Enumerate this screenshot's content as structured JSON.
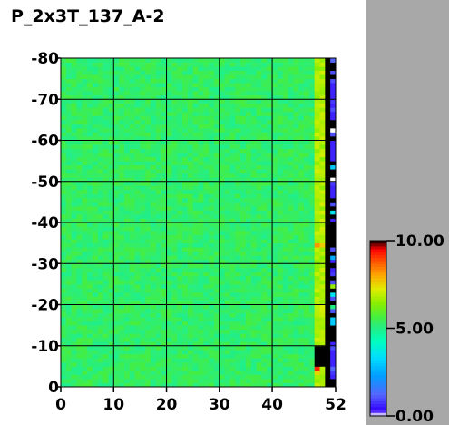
{
  "chart_data": {
    "type": "heatmap",
    "title": "P_2x3T_137_A-2",
    "xlabel": "",
    "ylabel": "",
    "x_range": [
      0,
      52
    ],
    "y_range": [
      0,
      80
    ],
    "x_ticks": [
      0,
      10,
      20,
      30,
      40,
      52
    ],
    "y_ticks": [
      0,
      10,
      20,
      30,
      40,
      50,
      60,
      70,
      80
    ],
    "x_tick_labels": [
      "0",
      "10",
      "20",
      "30",
      "40",
      "52"
    ],
    "y_tick_labels": [
      "0",
      "-10",
      "-20",
      "-30",
      "-40",
      "-50",
      "-60",
      "-70",
      "-80"
    ],
    "grid": true,
    "grid_color": "#000000",
    "typical_value": 5.3,
    "value_spread": 0.35,
    "edge_column_value": 6.8,
    "colorbar": {
      "min": 0.0,
      "max": 10.0,
      "labels": [
        "10.00",
        "5.00",
        "0.00"
      ],
      "label_values": [
        10.0,
        5.0,
        0.0
      ],
      "stops": [
        {
          "v": 0.0,
          "c": "#ffffff"
        },
        {
          "v": 0.3,
          "c": "#3300ff"
        },
        {
          "v": 1.2,
          "c": "#5566ff"
        },
        {
          "v": 2.3,
          "c": "#00a0ff"
        },
        {
          "v": 3.3,
          "c": "#00ddff"
        },
        {
          "v": 4.3,
          "c": "#00ffbb"
        },
        {
          "v": 5.0,
          "c": "#22ee88"
        },
        {
          "v": 5.6,
          "c": "#44ee44"
        },
        {
          "v": 6.4,
          "c": "#88ee00"
        },
        {
          "v": 7.2,
          "c": "#ddee00"
        },
        {
          "v": 8.0,
          "c": "#ffaa00"
        },
        {
          "v": 8.8,
          "c": "#ff5500"
        },
        {
          "v": 9.5,
          "c": "#ff0000"
        },
        {
          "v": 10.0,
          "c": "#000000"
        }
      ]
    },
    "right_band_cells": [
      {
        "y": 79,
        "v": 1.2
      },
      {
        "y": 78,
        "v": 10.0
      },
      {
        "y": 76,
        "v": 1.0
      },
      {
        "y": 75,
        "v": 10.0
      },
      {
        "y": 74,
        "v": 1.0
      },
      {
        "y": 73,
        "v": 0.6
      },
      {
        "y": 72,
        "v": 0.6
      },
      {
        "y": 71,
        "v": 0.6
      },
      {
        "y": 70,
        "v": 0.6
      },
      {
        "y": 69,
        "v": 0.8
      },
      {
        "y": 68,
        "v": 0.6
      },
      {
        "y": 67,
        "v": 1.0
      },
      {
        "y": 66,
        "v": 0.6
      },
      {
        "y": 65,
        "v": 0.6
      },
      {
        "y": 62,
        "v": 0.0
      },
      {
        "y": 61,
        "v": 1.0
      },
      {
        "y": 59,
        "v": 0.6
      },
      {
        "y": 58,
        "v": 0.6
      },
      {
        "y": 57,
        "v": 0.6
      },
      {
        "y": 56,
        "v": 0.6
      },
      {
        "y": 55,
        "v": 0.6
      },
      {
        "y": 53,
        "v": 3.0
      },
      {
        "y": 50,
        "v": 0.0
      },
      {
        "y": 49,
        "v": 0.8
      },
      {
        "y": 48,
        "v": 0.6
      },
      {
        "y": 47,
        "v": 0.6
      },
      {
        "y": 46,
        "v": 0.6
      },
      {
        "y": 44,
        "v": 1.0
      },
      {
        "y": 42,
        "v": 3.5
      },
      {
        "y": 40,
        "v": 0.6
      },
      {
        "y": 33,
        "v": 1.0
      },
      {
        "y": 31,
        "v": 2.5
      },
      {
        "y": 30,
        "v": 0.6
      },
      {
        "y": 28,
        "v": 0.6
      },
      {
        "y": 27,
        "v": 0.8
      },
      {
        "y": 25,
        "v": 1.0
      },
      {
        "y": 24,
        "v": 6.5
      },
      {
        "y": 22,
        "v": 3.5
      },
      {
        "y": 21,
        "v": 1.0
      },
      {
        "y": 19,
        "v": 5.0
      },
      {
        "y": 18,
        "v": 1.0
      },
      {
        "y": 16,
        "v": 3.0
      },
      {
        "y": 15,
        "v": 3.0
      },
      {
        "y": 10,
        "v": 0.6
      },
      {
        "y": 9,
        "v": 1.0
      },
      {
        "y": 8,
        "v": 0.6
      },
      {
        "y": 7,
        "v": 0.6
      },
      {
        "y": 6,
        "v": 0.6
      },
      {
        "y": 5,
        "v": 0.6
      },
      {
        "y": 4,
        "v": 1.2
      },
      {
        "y": 3,
        "v": 0.8
      },
      {
        "y": 2,
        "v": 0.6
      }
    ],
    "lower_left_black": {
      "x_from": 48,
      "x_to": 49,
      "y_from": 5,
      "y_to": 9
    },
    "highlight_cells": [
      {
        "x": 48,
        "y": 34,
        "v": 8.2
      },
      {
        "x": 49,
        "y": 34,
        "v": 7.6
      },
      {
        "x": 48,
        "y": 4,
        "v": 9.2
      },
      {
        "x": 48,
        "y": 3,
        "v": 7.5
      }
    ]
  }
}
